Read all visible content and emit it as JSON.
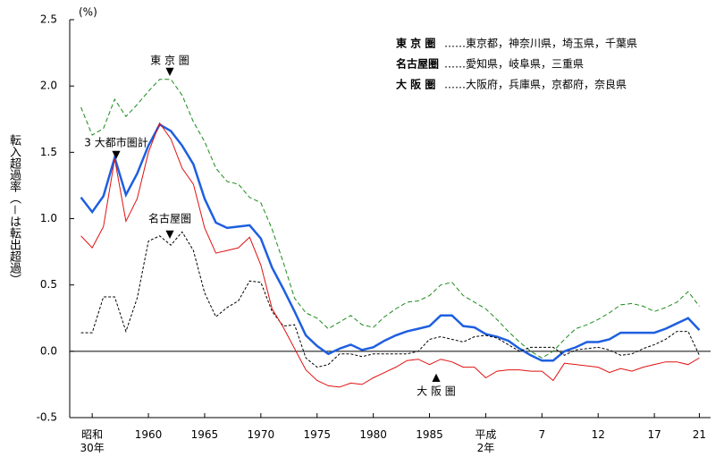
{
  "chart_data": {
    "type": "line",
    "unit": "(%)",
    "y_label": "転入超過率（－は転出超過）",
    "x": [
      1954,
      1955,
      1956,
      1957,
      1958,
      1959,
      1960,
      1961,
      1962,
      1963,
      1964,
      1965,
      1966,
      1967,
      1968,
      1969,
      1970,
      1971,
      1972,
      1973,
      1974,
      1975,
      1976,
      1977,
      1978,
      1979,
      1980,
      1981,
      1982,
      1983,
      1984,
      1985,
      1986,
      1987,
      1988,
      1989,
      1990,
      1991,
      1992,
      1993,
      1994,
      1995,
      1996,
      1997,
      1998,
      1999,
      2000,
      2001,
      2002,
      2003,
      2004,
      2005,
      2006,
      2007,
      2008,
      2009
    ],
    "series": [
      {
        "name": "東 京 圏",
        "color": "#1a8a1a",
        "dash": "5,3",
        "width": 1,
        "values": [
          1.84,
          1.63,
          1.68,
          1.9,
          1.77,
          1.86,
          1.96,
          2.05,
          2.05,
          1.93,
          1.73,
          1.58,
          1.38,
          1.28,
          1.26,
          1.16,
          1.12,
          0.92,
          0.67,
          0.4,
          0.29,
          0.25,
          0.17,
          0.22,
          0.27,
          0.2,
          0.18,
          0.26,
          0.32,
          0.37,
          0.38,
          0.42,
          0.5,
          0.52,
          0.42,
          0.37,
          0.32,
          0.24,
          0.15,
          0.07,
          0.0,
          -0.05,
          0.0,
          0.09,
          0.17,
          0.2,
          0.24,
          0.29,
          0.35,
          0.36,
          0.34,
          0.3,
          0.33,
          0.37,
          0.45,
          0.34
        ]
      },
      {
        "name": "3 大都市圏計",
        "color": "#1e5fe0",
        "dash": "",
        "width": 2.5,
        "values": [
          1.16,
          1.05,
          1.17,
          1.46,
          1.18,
          1.34,
          1.55,
          1.71,
          1.66,
          1.55,
          1.41,
          1.15,
          0.97,
          0.93,
          0.94,
          0.95,
          0.85,
          0.63,
          0.47,
          0.3,
          0.12,
          0.04,
          -0.02,
          0.02,
          0.05,
          0.01,
          0.03,
          0.08,
          0.12,
          0.15,
          0.17,
          0.19,
          0.27,
          0.27,
          0.19,
          0.18,
          0.13,
          0.11,
          0.08,
          0.02,
          -0.03,
          -0.07,
          -0.07,
          0.0,
          0.03,
          0.07,
          0.07,
          0.09,
          0.14,
          0.14,
          0.14,
          0.14,
          0.17,
          0.21,
          0.25,
          0.16
        ]
      },
      {
        "name": "名古屋圏",
        "color": "#000000",
        "dash": "3,2",
        "width": 1,
        "values": [
          0.14,
          0.14,
          0.41,
          0.41,
          0.15,
          0.4,
          0.83,
          0.87,
          0.8,
          0.9,
          0.76,
          0.44,
          0.26,
          0.33,
          0.38,
          0.53,
          0.52,
          0.3,
          0.19,
          0.2,
          -0.05,
          -0.12,
          -0.1,
          -0.02,
          -0.02,
          -0.04,
          -0.02,
          -0.02,
          -0.02,
          -0.02,
          0.0,
          0.09,
          0.11,
          0.09,
          0.07,
          0.11,
          0.12,
          0.1,
          0.05,
          0.0,
          0.03,
          0.03,
          0.03,
          -0.03,
          0.01,
          0.02,
          0.03,
          0.01,
          -0.03,
          -0.02,
          0.02,
          0.05,
          0.09,
          0.15,
          0.15,
          -0.03
        ]
      },
      {
        "name": "大 阪 圏",
        "color": "#e01010",
        "dash": "",
        "width": 1,
        "values": [
          0.87,
          0.78,
          0.94,
          1.45,
          0.98,
          1.15,
          1.5,
          1.72,
          1.6,
          1.38,
          1.26,
          0.93,
          0.74,
          0.76,
          0.78,
          0.86,
          0.65,
          0.32,
          0.18,
          0.02,
          -0.14,
          -0.22,
          -0.26,
          -0.27,
          -0.24,
          -0.25,
          -0.2,
          -0.16,
          -0.12,
          -0.07,
          -0.06,
          -0.1,
          -0.06,
          -0.08,
          -0.12,
          -0.12,
          -0.2,
          -0.15,
          -0.14,
          -0.14,
          -0.15,
          -0.15,
          -0.22,
          -0.09,
          -0.1,
          -0.11,
          -0.12,
          -0.16,
          -0.13,
          -0.15,
          -0.12,
          -0.1,
          -0.08,
          -0.08,
          -0.1,
          -0.05
        ]
      }
    ],
    "legend_notes": [
      {
        "term": "東 京 圏",
        "desc": "……東京都，神奈川県，埼玉県，千葉県"
      },
      {
        "term": "名古屋圏",
        "desc": "……愛知県，岐阜県，三重県"
      },
      {
        "term": "大 阪 圏",
        "desc": "……大阪府，兵庫県，京都府，奈良県"
      }
    ],
    "xlim": [
      1953,
      2010
    ],
    "xticks": [
      {
        "value": 1955,
        "label": "昭和\n30年"
      },
      1960,
      1965,
      1970,
      1975,
      1980,
      1985,
      {
        "value": 1990,
        "label": "平成\n2年"
      },
      {
        "value": 1995,
        "label": "7"
      },
      {
        "value": 2000,
        "label": "12"
      },
      {
        "value": 2005,
        "label": "17"
      },
      {
        "value": 2009,
        "label": "21"
      }
    ],
    "ylim": [
      -0.5,
      2.5
    ],
    "yticks": [
      2.5,
      {
        "value": 2.0,
        "label": "2.0"
      },
      1.5,
      {
        "value": 1.0,
        "label": "1.0"
      },
      0.5,
      {
        "value": 0.0,
        "label": "0.0"
      },
      -0.5
    ]
  }
}
